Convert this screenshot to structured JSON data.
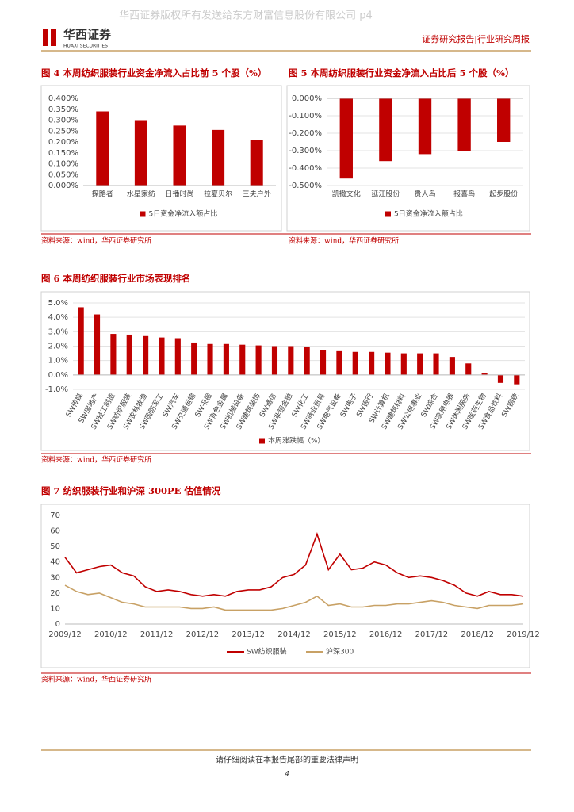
{
  "header": {
    "watermark": "华西证券版权所有发送给东方财富信息股份有限公司 p4",
    "logo": "华西证券",
    "logo_en": "HUAXI SECURITIES",
    "report_type": "证券研究报告|行业研究周报"
  },
  "chart_data": [
    {
      "type": "bar",
      "title": "图 4 本周纺织服装行业资金净流入占比前 5 个股（%）",
      "categories": [
        "探路者",
        "水星家纺",
        "日播时尚",
        "拉夏贝尔",
        "三夫户外"
      ],
      "series": [
        {
          "name": "5日资金净流入额占比",
          "color": "#c00000",
          "values": [
            0.34,
            0.3,
            0.275,
            0.255,
            0.21
          ]
        }
      ],
      "ylim": [
        0,
        0.4
      ],
      "yticks": [
        {
          "value": 0,
          "label": "0.000%"
        },
        {
          "value": 0.05,
          "label": "0.050%"
        },
        {
          "value": 0.1,
          "label": "0.100%"
        },
        {
          "value": 0.15,
          "label": "0.150%"
        },
        {
          "value": 0.2,
          "label": "0.200%"
        },
        {
          "value": 0.25,
          "label": "0.250%"
        },
        {
          "value": 0.3,
          "label": "0.300%"
        },
        {
          "value": 0.35,
          "label": "0.350%"
        },
        {
          "value": 0.4,
          "label": "0.400%"
        }
      ],
      "grid": false
    },
    {
      "type": "bar",
      "title": "图 5 本周纺织服装行业资金净流入占比后 5 个股（%）",
      "categories": [
        "凯撒文化",
        "延江股份",
        "贵人鸟",
        "报喜鸟",
        "起步股份"
      ],
      "series": [
        {
          "name": "5日资金净流入额占比",
          "color": "#c00000",
          "values": [
            -0.46,
            -0.36,
            -0.32,
            -0.3,
            -0.25
          ]
        }
      ],
      "ylim": [
        -0.5,
        0
      ],
      "yticks": [
        {
          "value": 0,
          "label": "0.000%"
        },
        {
          "value": -0.1,
          "label": "-0.100%"
        },
        {
          "value": -0.2,
          "label": "-0.200%"
        },
        {
          "value": -0.3,
          "label": "-0.300%"
        },
        {
          "value": -0.4,
          "label": "-0.400%"
        },
        {
          "value": -0.5,
          "label": "-0.500%"
        }
      ],
      "grid": true
    },
    {
      "type": "bar",
      "title": "图 6 本周纺织服装行业市场表现排名",
      "categories": [
        "SW传媒",
        "SW房地产",
        "SW轻工制造",
        "SW纺织服装",
        "SW农林牧渔",
        "SW国防军工",
        "SW汽车",
        "SW交通运输",
        "SW采掘",
        "SW有色金属",
        "SW机械设备",
        "SW建筑装饰",
        "SW通信",
        "SW非银金融",
        "SW化工",
        "SW商业贸易",
        "SW电气设备",
        "SW电子",
        "SW银行",
        "SW计算机",
        "SW建筑材料",
        "SW公用事业",
        "SW综合",
        "SW家用电器",
        "SW休闲服务",
        "SW医药生物",
        "SW食品饮料",
        "SW钢铁"
      ],
      "series": [
        {
          "name": "本周涨跌幅（%）",
          "color": "#c00000",
          "values": [
            4.7,
            4.2,
            2.85,
            2.8,
            2.7,
            2.6,
            2.55,
            2.25,
            2.15,
            2.15,
            2.1,
            2.05,
            2.0,
            2.0,
            1.95,
            1.7,
            1.65,
            1.6,
            1.6,
            1.55,
            1.5,
            1.5,
            1.5,
            1.25,
            0.8,
            0.1,
            -0.55,
            -0.65
          ]
        }
      ],
      "ylim": [
        -1,
        5
      ],
      "yticks": [
        {
          "value": 5,
          "label": "5.0%"
        },
        {
          "value": 4,
          "label": "4.0%"
        },
        {
          "value": 3,
          "label": "3.0%"
        },
        {
          "value": 2,
          "label": "2.0%"
        },
        {
          "value": 1,
          "label": "1.0%"
        },
        {
          "value": 0,
          "label": "0.0%"
        },
        {
          "value": -1,
          "label": "-1.0%"
        }
      ],
      "grid": true
    },
    {
      "type": "line",
      "title": "图 7 纺织服装行业和沪深 300PE 估值情况",
      "x": [
        "2009/12",
        "2010/03",
        "2010/06",
        "2010/09",
        "2010/12",
        "2011/03",
        "2011/06",
        "2011/09",
        "2011/12",
        "2012/03",
        "2012/06",
        "2012/09",
        "2012/12",
        "2013/03",
        "2013/06",
        "2013/09",
        "2013/12",
        "2014/03",
        "2014/06",
        "2014/09",
        "2014/12",
        "2015/03",
        "2015/06",
        "2015/09",
        "2015/12",
        "2016/03",
        "2016/06",
        "2016/09",
        "2016/12",
        "2017/03",
        "2017/06",
        "2017/09",
        "2017/12",
        "2018/03",
        "2018/06",
        "2018/09",
        "2018/12",
        "2019/03",
        "2019/06",
        "2019/09",
        "2019/12"
      ],
      "series": [
        {
          "name": "SW纺织服装",
          "color": "#c00000",
          "values": [
            43,
            33,
            35,
            37,
            38,
            33,
            31,
            24,
            21,
            22,
            21,
            19,
            18,
            19,
            18,
            21,
            22,
            22,
            24,
            30,
            32,
            38,
            58,
            35,
            45,
            35,
            36,
            40,
            38,
            33,
            30,
            31,
            30,
            28,
            25,
            20,
            18,
            21,
            19,
            19,
            18
          ]
        },
        {
          "name": "沪深300",
          "color": "#c8a165",
          "values": [
            25,
            21,
            19,
            20,
            17,
            14,
            13,
            11,
            11,
            11,
            11,
            10,
            10,
            11,
            9,
            9,
            9,
            9,
            9,
            10,
            12,
            14,
            18,
            12,
            13,
            11,
            11,
            12,
            12,
            13,
            13,
            14,
            15,
            14,
            12,
            11,
            10,
            12,
            12,
            12,
            13
          ]
        }
      ],
      "xlim": [
        "2009/12",
        "2019/12"
      ],
      "xticks": [
        "2009/12",
        "2010/12",
        "2011/12",
        "2012/12",
        "2013/12",
        "2014/12",
        "2015/12",
        "2016/12",
        "2017/12",
        "2018/12",
        "2019/12"
      ],
      "ylim": [
        0,
        70
      ],
      "yticks": [
        0,
        10,
        20,
        30,
        40,
        50,
        60,
        70
      ],
      "grid": false
    }
  ],
  "sources": [
    "资料来源：wind，华西证券研究所",
    "资料来源：wind，华西证券研究所",
    "资料来源：wind，华西证券研究所",
    "资料来源：wind，华西证券研究所"
  ],
  "footer": {
    "notice": "请仔细阅读在本报告尾部的重要法律声明",
    "page": "4"
  }
}
